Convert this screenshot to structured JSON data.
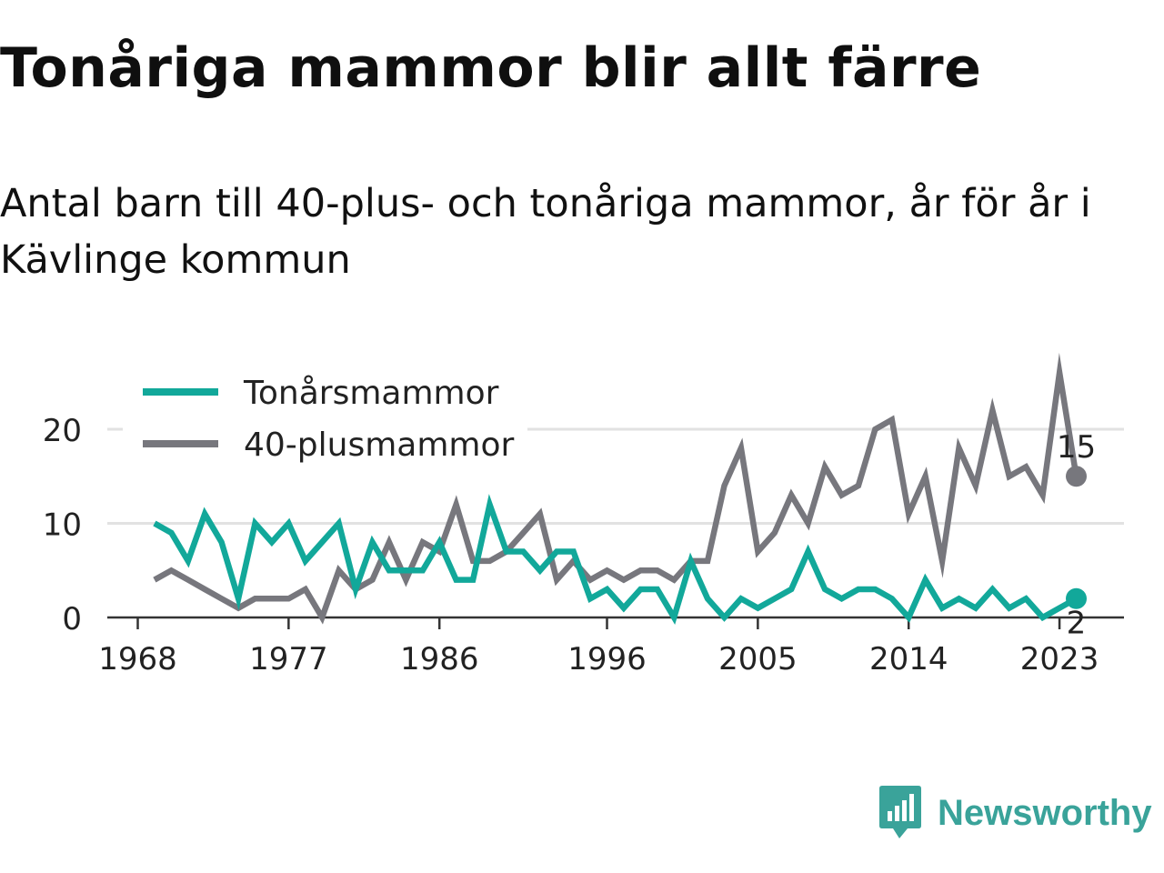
{
  "title": "Tonåriga mammor blir allt färre",
  "subtitle": "Antal barn till 40-plus- och tonåriga mammor, år för år i Kävlinge kommun",
  "brand": {
    "name": "Newsworthy",
    "icon": "newsworthy-logo-icon"
  },
  "colors": {
    "teal": "#12a89a",
    "gray": "#77777d"
  },
  "chart_data": {
    "type": "line",
    "x": [
      1969,
      1970,
      1971,
      1972,
      1973,
      1974,
      1975,
      1976,
      1977,
      1978,
      1979,
      1980,
      1981,
      1982,
      1983,
      1984,
      1985,
      1986,
      1987,
      1988,
      1989,
      1990,
      1991,
      1992,
      1993,
      1994,
      1995,
      1996,
      1997,
      1998,
      1999,
      2000,
      2001,
      2002,
      2003,
      2004,
      2005,
      2006,
      2007,
      2008,
      2009,
      2010,
      2011,
      2012,
      2013,
      2014,
      2015,
      2016,
      2017,
      2018,
      2019,
      2020,
      2021,
      2022,
      2023,
      2024
    ],
    "series": [
      {
        "name": "Tonårsmammor",
        "color": "#12a89a",
        "values": [
          10,
          9,
          6,
          11,
          8,
          2,
          10,
          8,
          10,
          6,
          8,
          10,
          3,
          8,
          5,
          5,
          5,
          8,
          4,
          4,
          12,
          7,
          7,
          5,
          7,
          7,
          2,
          3,
          1,
          3,
          3,
          0,
          6,
          2,
          0,
          2,
          1,
          2,
          3,
          7,
          3,
          2,
          3,
          3,
          2,
          0,
          4,
          1,
          2,
          1,
          3,
          1,
          2,
          0,
          1,
          2
        ]
      },
      {
        "name": "40-plusmammor",
        "color": "#77777d",
        "values": [
          4,
          5,
          4,
          3,
          2,
          1,
          2,
          2,
          2,
          3,
          0,
          5,
          3,
          4,
          8,
          4,
          8,
          7,
          12,
          6,
          6,
          7,
          9,
          11,
          4,
          6,
          4,
          5,
          4,
          5,
          5,
          4,
          6,
          6,
          14,
          18,
          7,
          9,
          13,
          10,
          16,
          13,
          14,
          20,
          21,
          11,
          15,
          6,
          18,
          14,
          22,
          15,
          16,
          13,
          26,
          15
        ]
      }
    ],
    "end_labels": [
      "15",
      "2"
    ],
    "x_ticks": [
      "1968",
      "1977",
      "1986",
      "1996",
      "2005",
      "2014",
      "2023"
    ],
    "y_ticks": [
      "0",
      "10",
      "20"
    ],
    "ylim": [
      0,
      26
    ],
    "legend_position": "top-left",
    "grid": true
  }
}
